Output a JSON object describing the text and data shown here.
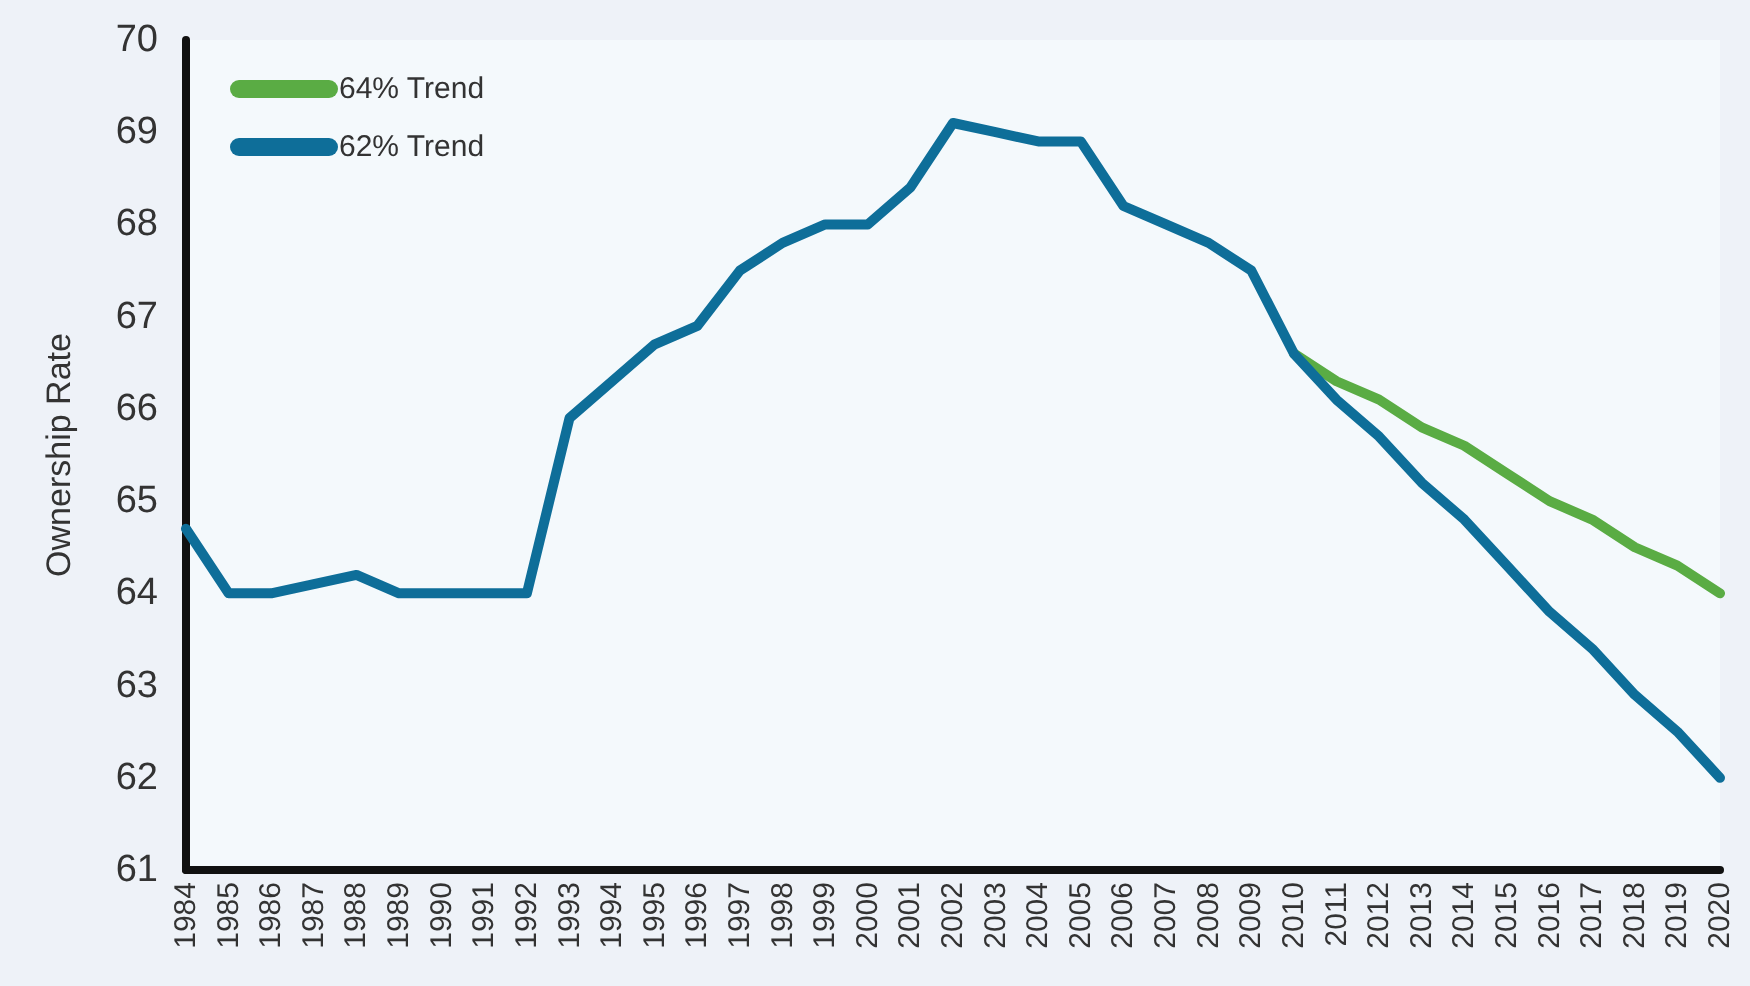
{
  "chart_data": {
    "type": "line",
    "ylabel": "Ownership Rate",
    "categories": [
      "1984",
      "1985",
      "1986",
      "1987",
      "1988",
      "1989",
      "1990",
      "1991",
      "1992",
      "1993",
      "1994",
      "1995",
      "1996",
      "1997",
      "1998",
      "1999",
      "2000",
      "2001",
      "2002",
      "2003",
      "2004",
      "2005",
      "2006",
      "2007",
      "2008",
      "2009",
      "2010",
      "2011",
      "2012",
      "2013",
      "2014",
      "2015",
      "2016",
      "2017",
      "2018",
      "2019",
      "2020"
    ],
    "series": [
      {
        "name": "64% Trend",
        "color": "#5aac44",
        "values": [
          null,
          null,
          null,
          null,
          null,
          null,
          null,
          null,
          null,
          null,
          null,
          null,
          null,
          null,
          null,
          null,
          null,
          null,
          null,
          null,
          null,
          null,
          null,
          null,
          null,
          null,
          66.6,
          66.3,
          66.1,
          65.8,
          65.6,
          65.3,
          65.0,
          64.8,
          64.5,
          64.3,
          64.0
        ]
      },
      {
        "name": "62% Trend",
        "color": "#0e6e99",
        "values": [
          64.7,
          64.0,
          64.0,
          64.1,
          64.2,
          64.0,
          64.0,
          64.0,
          64.0,
          65.9,
          66.3,
          66.7,
          66.9,
          67.5,
          67.8,
          68.0,
          68.0,
          68.4,
          69.1,
          69.0,
          68.9,
          68.9,
          68.2,
          68.0,
          67.8,
          67.5,
          66.6,
          66.1,
          65.7,
          65.2,
          64.8,
          64.3,
          63.8,
          63.4,
          62.9,
          62.5,
          62.0
        ]
      }
    ],
    "ylim": [
      61,
      70
    ],
    "yticks": [
      61,
      62,
      63,
      64,
      65,
      66,
      67,
      68,
      69,
      70
    ],
    "grid": false,
    "legend": "top left",
    "marker": "none",
    "line_style": "solid"
  }
}
